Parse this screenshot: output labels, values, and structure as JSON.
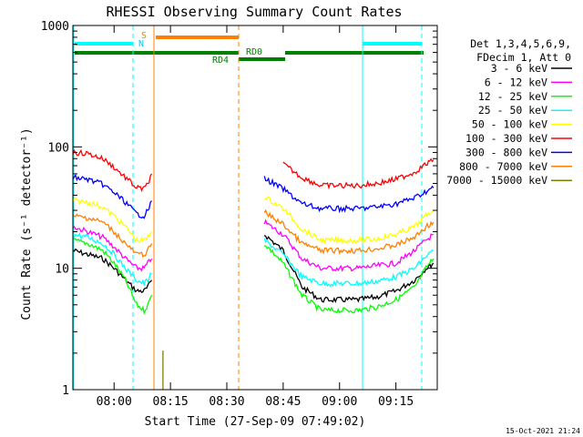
{
  "chart_data": {
    "type": "line",
    "title": "RHESSI Observing Summary Count Rates",
    "xlabel": "Start Time (27-Sep-09 07:49:02)",
    "ylabel": "Count Rate (s⁻¹ detector⁻¹)",
    "yscale": "log",
    "ylim": [
      1,
      1000
    ],
    "xlim": [
      "07:49:02",
      "09:26:00"
    ],
    "x_ticks": [
      "08:00",
      "08:15",
      "08:30",
      "08:45",
      "09:00",
      "09:15"
    ],
    "y_ticks": [
      "1",
      "10",
      "100",
      "1000"
    ],
    "legend": {
      "placement": "right",
      "header": [
        "Det 1,3,4,5,6,9,",
        "FDecim 1, Att 0"
      ]
    },
    "series": [
      {
        "name": "3 - 6 keV",
        "color": "#000000",
        "x": [
          "07:49",
          "07:53",
          "07:57",
          "08:00",
          "08:03",
          "08:06",
          "08:08",
          "08:09",
          "08:10",
          "08:11",
          "08:12",
          "08:13",
          "08:14",
          "08:16",
          "08:20",
          "08:25",
          "08:30",
          "08:35",
          "08:40",
          "08:45",
          "08:50",
          "08:55",
          "09:00",
          "09:05",
          "09:10",
          "09:15",
          "09:20",
          "09:23",
          "09:25"
        ],
        "y": [
          14,
          13,
          12,
          10,
          8,
          6.5,
          6.5,
          7,
          8,
          null,
          null,
          null,
          null,
          null,
          null,
          null,
          null,
          null,
          19,
          14,
          7,
          5.5,
          5.5,
          5.5,
          5.8,
          6.5,
          8,
          10,
          11
        ]
      },
      {
        "name": "6 - 12 keV",
        "color": "#ff00ff",
        "x": [
          "07:49",
          "07:53",
          "07:57",
          "08:00",
          "08:03",
          "08:06",
          "08:08",
          "08:09",
          "08:10",
          "08:11",
          "08:12",
          "08:13",
          "08:14",
          "08:16",
          "08:20",
          "08:25",
          "08:30",
          "08:35",
          "08:40",
          "08:45",
          "08:50",
          "08:55",
          "09:00",
          "09:05",
          "09:10",
          "09:15",
          "09:20",
          "09:23",
          "09:25"
        ],
        "y": [
          22,
          20,
          18,
          15,
          12,
          10,
          10,
          11,
          12,
          null,
          null,
          null,
          null,
          null,
          null,
          null,
          null,
          null,
          24,
          19,
          12,
          10,
          10,
          10,
          10.5,
          11,
          14,
          17,
          19
        ]
      },
      {
        "name": "12 - 25 keV",
        "color": "#00ff00",
        "x": [
          "07:49",
          "07:53",
          "07:57",
          "08:00",
          "08:03",
          "08:06",
          "08:08",
          "08:09",
          "08:10",
          "08:11",
          "08:12",
          "08:13",
          "08:14",
          "08:16",
          "08:20",
          "08:25",
          "08:30",
          "08:35",
          "08:40",
          "08:45",
          "08:50",
          "08:55",
          "09:00",
          "09:05",
          "09:10",
          "09:15",
          "09:20",
          "09:23",
          "09:25"
        ],
        "y": [
          17,
          16,
          14,
          11,
          8,
          5,
          4.5,
          5,
          6,
          null,
          null,
          null,
          null,
          null,
          null,
          null,
          null,
          null,
          16,
          11,
          6,
          4.5,
          4.5,
          4.5,
          4.8,
          5.5,
          7,
          10,
          12
        ]
      },
      {
        "name": "25 - 50 keV",
        "color": "#00ffff",
        "x": [
          "07:49",
          "07:53",
          "07:57",
          "08:00",
          "08:03",
          "08:06",
          "08:08",
          "08:09",
          "08:10",
          "08:11",
          "08:12",
          "08:13",
          "08:14",
          "08:16",
          "08:20",
          "08:25",
          "08:30",
          "08:35",
          "08:40",
          "08:45",
          "08:50",
          "08:55",
          "09:00",
          "09:05",
          "09:10",
          "09:15",
          "09:20",
          "09:23",
          "09:25"
        ],
        "y": [
          19,
          18,
          16,
          13,
          10,
          8,
          7.5,
          8,
          9,
          null,
          null,
          null,
          null,
          null,
          null,
          null,
          null,
          null,
          17,
          13,
          8.5,
          7.5,
          7.5,
          7.5,
          7.8,
          8.5,
          10,
          12.5,
          14
        ]
      },
      {
        "name": "50 - 100 keV",
        "color": "#ffff00",
        "x": [
          "07:49",
          "07:53",
          "07:57",
          "08:00",
          "08:03",
          "08:06",
          "08:08",
          "08:09",
          "08:10",
          "08:11",
          "08:12",
          "08:13",
          "08:14",
          "08:16",
          "08:20",
          "08:25",
          "08:30",
          "08:35",
          "08:40",
          "08:45",
          "08:50",
          "08:55",
          "09:00",
          "09:05",
          "09:10",
          "09:15",
          "09:20",
          "09:23",
          "09:25"
        ],
        "y": [
          36,
          35,
          32,
          27,
          22,
          17,
          17,
          18,
          20,
          null,
          null,
          null,
          null,
          null,
          null,
          null,
          null,
          null,
          39,
          31,
          21,
          17,
          17,
          17,
          17.5,
          19,
          22,
          27,
          30
        ]
      },
      {
        "name": "100 - 300 keV",
        "color": "#ff0000",
        "x": [
          "07:49",
          "07:53",
          "07:57",
          "08:00",
          "08:03",
          "08:06",
          "08:08",
          "08:09",
          "08:10",
          "08:11",
          "08:12",
          "08:13",
          "08:14",
          "08:16",
          "08:20",
          "08:25",
          "08:30",
          "08:35",
          "08:40",
          "08:45",
          "08:50",
          "08:55",
          "09:00",
          "09:05",
          "09:10",
          "09:15",
          "09:20",
          "09:23",
          "09:25"
        ],
        "y": [
          90,
          88,
          80,
          68,
          56,
          46,
          45,
          50,
          60,
          null,
          null,
          null,
          null,
          null,
          null,
          null,
          null,
          null,
          null,
          72,
          56,
          48,
          48,
          48,
          50,
          54,
          62,
          72,
          78
        ]
      },
      {
        "name": "300 - 800 keV",
        "color": "#0000ff",
        "x": [
          "07:49",
          "07:53",
          "07:57",
          "08:00",
          "08:03",
          "08:06",
          "08:08",
          "08:09",
          "08:10",
          "08:11",
          "08:12",
          "08:13",
          "08:14",
          "08:16",
          "08:20",
          "08:25",
          "08:30",
          "08:35",
          "08:40",
          "08:45",
          "08:50",
          "08:55",
          "09:00",
          "09:05",
          "09:10",
          "09:15",
          "09:20",
          "09:23",
          "09:25"
        ],
        "y": [
          56,
          54,
          49,
          42,
          35,
          28,
          27,
          30,
          36,
          null,
          null,
          null,
          null,
          null,
          null,
          null,
          null,
          null,
          55,
          45,
          34,
          31,
          31,
          31,
          32,
          34,
          38,
          43,
          46
        ]
      },
      {
        "name": "800 - 7000 keV",
        "color": "#ff8000",
        "x": [
          "07:49",
          "07:53",
          "07:57",
          "08:00",
          "08:03",
          "08:06",
          "08:08",
          "08:09",
          "08:10",
          "08:11",
          "08:12",
          "08:13",
          "08:14",
          "08:16",
          "08:20",
          "08:25",
          "08:30",
          "08:35",
          "08:40",
          "08:45",
          "08:50",
          "08:55",
          "09:00",
          "09:05",
          "09:10",
          "09:15",
          "09:20",
          "09:23",
          "09:25"
        ],
        "y": [
          27,
          26,
          24,
          20,
          16,
          13,
          13,
          14,
          16,
          null,
          null,
          null,
          null,
          null,
          null,
          null,
          null,
          null,
          29,
          23,
          16,
          14,
          14,
          14,
          14.5,
          15.5,
          18,
          22,
          24
        ]
      },
      {
        "name": "7000 - 15000 keV",
        "color": "#808000",
        "x": [
          "08:13",
          "08:13",
          "08:13"
        ],
        "y": [
          1,
          2,
          1
        ]
      }
    ],
    "annotations": {
      "flags": [
        {
          "label": "S",
          "color": "#ff8000"
        },
        {
          "label": "N",
          "color": "#00ccff"
        },
        {
          "label": "RD0",
          "color": "#008000"
        },
        {
          "label": "RD4",
          "color": "#008000"
        }
      ]
    }
  },
  "footer": {
    "timestamp": "15-Oct-2021 21:24"
  }
}
